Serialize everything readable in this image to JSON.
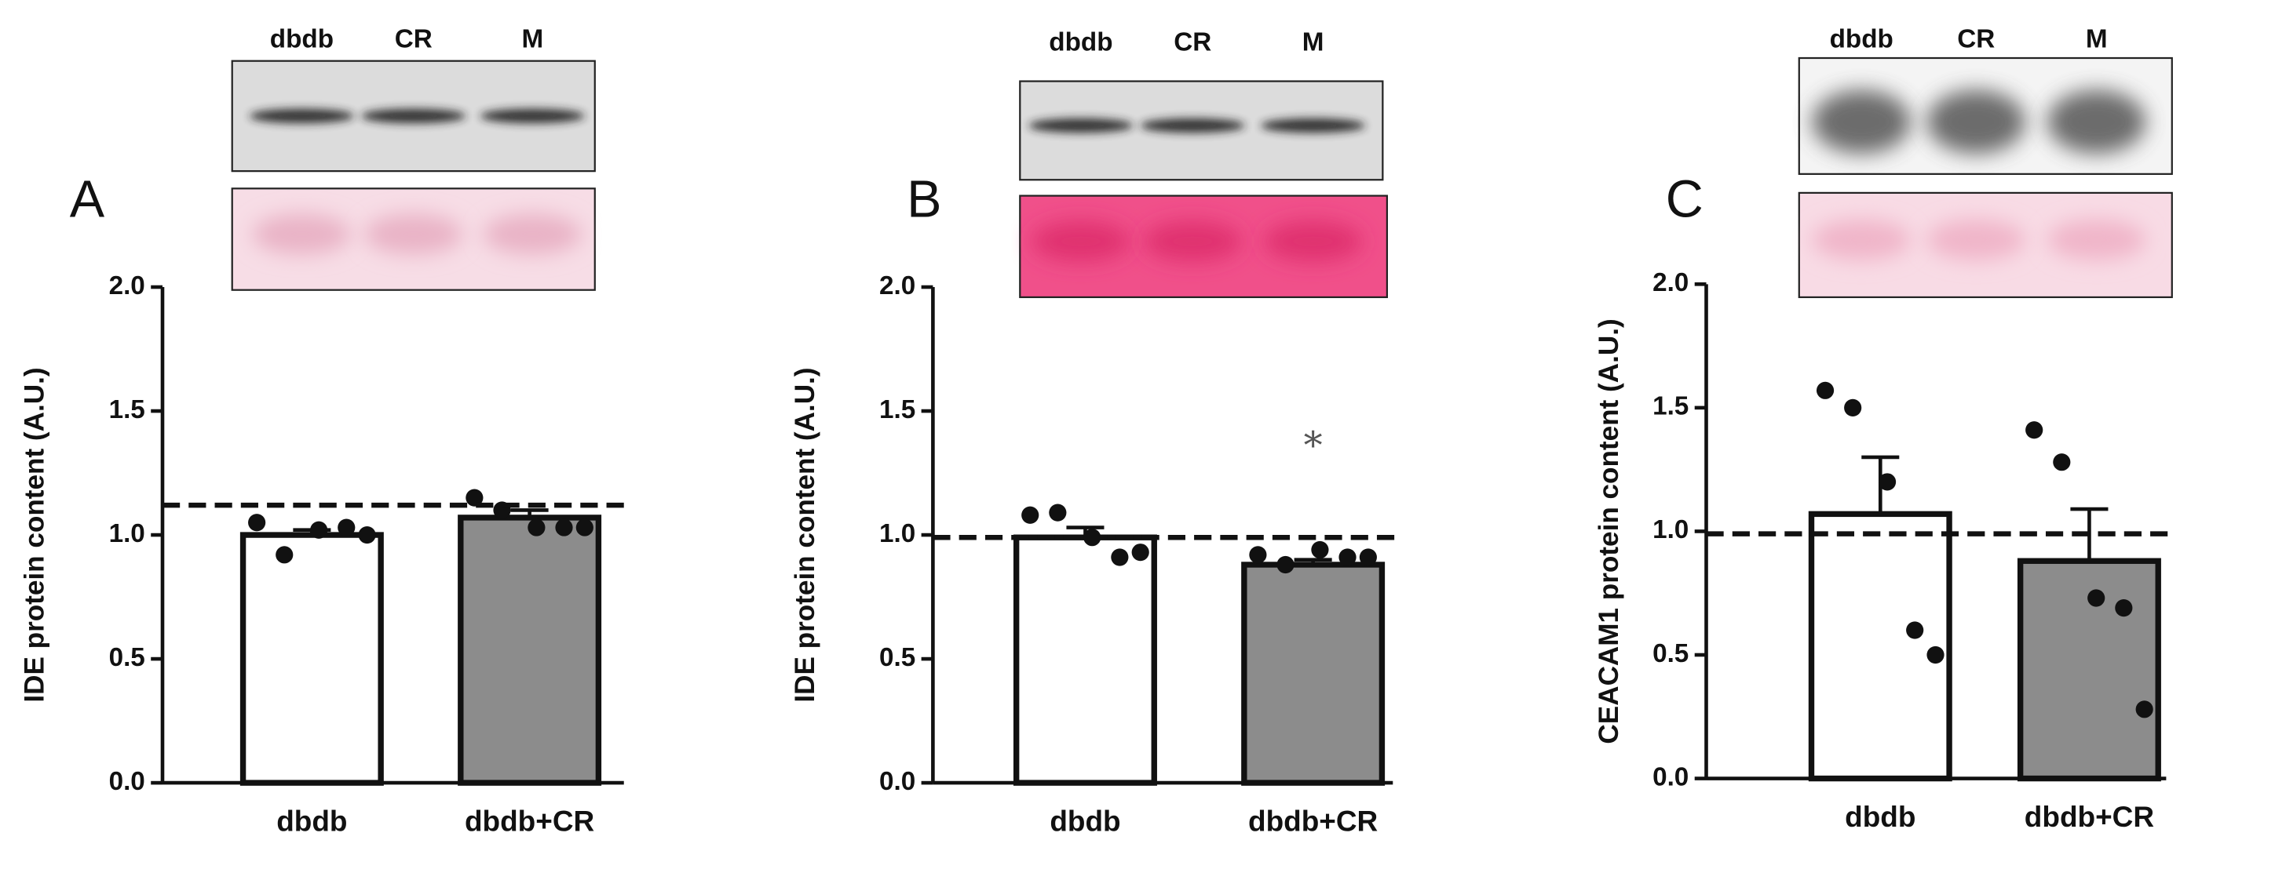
{
  "chart_data": [
    {
      "type": "bar",
      "panel": "A",
      "ylabel": "IDE protein content (A.U.)",
      "lanes": [
        "dbdb",
        "CR",
        "M"
      ],
      "categories": [
        "dbdb",
        "dbdb+CR"
      ],
      "values": [
        1.0,
        1.07
      ],
      "errors": [
        0.02,
        0.03
      ],
      "colors": [
        "#ffffff",
        "#8c8c8c"
      ],
      "points": [
        [
          1.05,
          0.92,
          1.02,
          1.03,
          1.0
        ],
        [
          1.15,
          1.1,
          1.03,
          1.03,
          1.03
        ]
      ],
      "reference_line": 1.12,
      "ylim": [
        0,
        2
      ],
      "yticks": [
        {
          "value": 0,
          "label": "0.0"
        },
        {
          "value": 0.5,
          "label": "0.5"
        },
        {
          "value": 1,
          "label": "1.0"
        },
        {
          "value": 1.5,
          "label": "1.5"
        },
        {
          "value": 2,
          "label": "2.0"
        }
      ]
    },
    {
      "type": "bar",
      "panel": "B",
      "ylabel": "IDE protein content (A.U.)",
      "lanes": [
        "dbdb",
        "CR",
        "M"
      ],
      "categories": [
        "dbdb",
        "dbdb+CR"
      ],
      "values": [
        0.99,
        0.88
      ],
      "errors": [
        0.04,
        0.02
      ],
      "colors": [
        "#ffffff",
        "#8c8c8c"
      ],
      "points": [
        [
          1.08,
          1.09,
          0.99,
          0.91,
          0.93
        ],
        [
          0.92,
          0.88,
          0.94,
          0.91,
          0.91
        ]
      ],
      "reference_line": 0.99,
      "annotations": [
        {
          "text": "*",
          "category": "dbdb+CR"
        }
      ],
      "ylim": [
        0,
        2
      ],
      "yticks": [
        {
          "value": 0,
          "label": "0.0"
        },
        {
          "value": 0.5,
          "label": "0.5"
        },
        {
          "value": 1,
          "label": "1.0"
        },
        {
          "value": 1.5,
          "label": "1.5"
        },
        {
          "value": 2,
          "label": "2.0"
        }
      ]
    },
    {
      "type": "bar",
      "panel": "C",
      "ylabel": "CEACAM1 protein content (A.U.)",
      "lanes": [
        "dbdb",
        "CR",
        "M"
      ],
      "categories": [
        "dbdb",
        "dbdb+CR"
      ],
      "values": [
        1.07,
        0.88
      ],
      "errors": [
        0.23,
        0.21
      ],
      "colors": [
        "#ffffff",
        "#8c8c8c"
      ],
      "points": [
        [
          1.57,
          1.5,
          1.2,
          0.6,
          0.5
        ],
        [
          1.41,
          1.28,
          0.73,
          0.69,
          0.28
        ]
      ],
      "reference_line": 0.99,
      "ylim": [
        0,
        2
      ],
      "yticks": [
        {
          "value": 0,
          "label": "0.0"
        },
        {
          "value": 0.5,
          "label": "0.5"
        },
        {
          "value": 1,
          "label": "1.0"
        },
        {
          "value": 1.5,
          "label": "1.5"
        },
        {
          "value": 2,
          "label": "2.0"
        }
      ]
    }
  ]
}
